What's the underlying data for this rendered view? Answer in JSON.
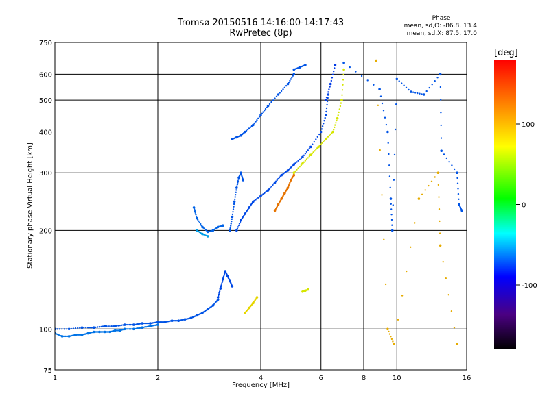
{
  "chart_data": {
    "type": "scatter",
    "title": "Tromsø 20150516 14:16:00-14:17:43",
    "subtitle": "RwPretec (8p)",
    "xlabel": "Frequency [MHz]",
    "ylabel": "Stationary phase Virtual Height [km]",
    "x_scale": "log",
    "y_scale": "log",
    "xlim": [
      1,
      16
    ],
    "ylim": [
      75,
      750
    ],
    "x_ticks": [
      1,
      2,
      4,
      6,
      8,
      10,
      16
    ],
    "x_tick_labels": [
      "1",
      "2",
      "4",
      "6",
      "8",
      "10",
      "16"
    ],
    "y_ticks": [
      75,
      100,
      200,
      300,
      400,
      500,
      600,
      750
    ],
    "y_tick_labels": [
      "75",
      "100",
      "200",
      "300",
      "400",
      "500",
      "600",
      "750"
    ],
    "grid": true,
    "phase_stats": {
      "title": "Phase",
      "o_mode": "mean, sd,O: -86.8, 13.4",
      "x_mode": "mean, sd,X:  87.5, 17.0"
    },
    "colorbar": {
      "unit": "[deg]",
      "range": [
        -180,
        180
      ],
      "ticks": [
        100,
        0,
        -100
      ],
      "tick_labels": [
        "100",
        "0",
        "-100"
      ],
      "colormap": "rainbow"
    },
    "series": [
      {
        "x": [
          1.0,
          1.05,
          1.1,
          1.15,
          1.2,
          1.25,
          1.3,
          1.35,
          1.4,
          1.45,
          1.5,
          1.55,
          1.6,
          1.7,
          1.8,
          1.9,
          2.0
        ],
        "y": [
          97,
          95,
          95,
          96,
          96,
          97,
          98,
          98,
          98,
          98,
          99,
          99,
          100,
          100,
          101,
          102,
          103
        ],
        "phase": -100
      },
      {
        "x": [
          1.0,
          1.1,
          1.2,
          1.3,
          1.4,
          1.5,
          1.6,
          1.7,
          1.8,
          1.9,
          2.0,
          2.1,
          2.2,
          2.3,
          2.4,
          2.5,
          2.6,
          2.7,
          2.8,
          2.9,
          3.0
        ],
        "y": [
          100,
          100,
          101,
          101,
          102,
          102,
          103,
          103,
          104,
          104,
          105,
          105,
          106,
          106,
          107,
          108,
          110,
          112,
          115,
          118,
          123
        ],
        "phase": -110
      },
      {
        "x": [
          3.0,
          3.05,
          3.1,
          3.15,
          3.2,
          3.25,
          3.3
        ],
        "y": [
          125,
          133,
          142,
          150,
          145,
          140,
          135
        ],
        "phase": -115
      },
      {
        "x": [
          2.55,
          2.6,
          2.7,
          2.8,
          2.9,
          3.0,
          3.1
        ],
        "y": [
          235,
          218,
          205,
          198,
          200,
          205,
          207
        ],
        "phase": -105
      },
      {
        "x": [
          2.6,
          2.7,
          2.8
        ],
        "y": [
          200,
          195,
          192
        ],
        "phase": -85
      },
      {
        "x": [
          3.25,
          3.3,
          3.35,
          3.4,
          3.45,
          3.5,
          3.55
        ],
        "y": [
          200,
          220,
          245,
          270,
          290,
          300,
          285
        ],
        "phase": -110
      },
      {
        "x": [
          3.4,
          3.5,
          3.6,
          3.7,
          3.8,
          4.0,
          4.2,
          4.4,
          4.6,
          4.8,
          5.0,
          5.3,
          5.6,
          6.0,
          6.2,
          6.3
        ],
        "y": [
          200,
          215,
          225,
          235,
          245,
          255,
          265,
          280,
          295,
          305,
          318,
          335,
          360,
          400,
          450,
          520
        ],
        "phase": -115
      },
      {
        "x": [
          3.3,
          3.4,
          3.5,
          3.6,
          3.8,
          4.0,
          4.2,
          4.5,
          4.8,
          5.0
        ],
        "y": [
          380,
          385,
          390,
          400,
          420,
          450,
          480,
          520,
          560,
          600
        ],
        "phase": -110
      },
      {
        "x": [
          5.0,
          5.2,
          5.4
        ],
        "y": [
          620,
          630,
          640
        ],
        "phase": -110
      },
      {
        "x": [
          4.4,
          4.5,
          4.6,
          4.7,
          4.8,
          4.9,
          5.0
        ],
        "y": [
          230,
          240,
          250,
          260,
          270,
          285,
          295
        ],
        "phase": 140
      },
      {
        "x": [
          5.0,
          5.3,
          5.6,
          5.9,
          6.2,
          6.5,
          6.7,
          6.9,
          7.0
        ],
        "y": [
          300,
          320,
          340,
          360,
          380,
          400,
          440,
          500,
          620
        ],
        "phase": 95
      },
      {
        "x": [
          3.6,
          3.7,
          3.8,
          3.9
        ],
        "y": [
          112,
          116,
          120,
          125
        ],
        "phase": 105
      },
      {
        "x": [
          5.3,
          5.4,
          5.5
        ],
        "y": [
          130,
          131,
          132
        ],
        "phase": 95
      },
      {
        "x": [
          6.2,
          6.4,
          6.6
        ],
        "y": [
          500,
          560,
          640
        ],
        "phase": -120
      },
      {
        "x": [
          7.0,
          8.9,
          9.4,
          9.6,
          9.7,
          10.0,
          11.0,
          12.0,
          13.4,
          13.5,
          15.0,
          15.2,
          15.5
        ],
        "y": [
          650,
          540,
          400,
          250,
          200,
          580,
          530,
          520,
          600,
          350,
          300,
          240,
          230
        ],
        "phase": -110
      },
      {
        "x": [
          8.7,
          9.4,
          9.8,
          11.6,
          13.2,
          13.4,
          15.0
        ],
        "y": [
          660,
          100,
          90,
          250,
          300,
          180,
          90
        ],
        "phase": 120
      }
    ]
  }
}
